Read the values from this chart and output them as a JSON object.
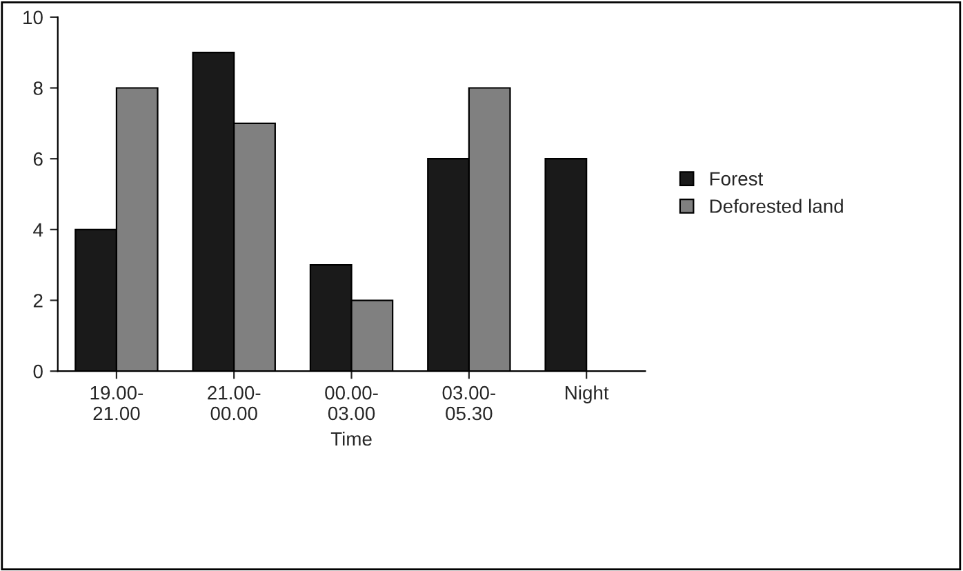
{
  "chart_data": {
    "type": "bar",
    "xlabel": "Time",
    "categories": [
      "19.00-21.00",
      "21.00-00.00",
      "00.00-03.00",
      "03.00-05.30",
      "Night"
    ],
    "series": [
      {
        "name": "Forest",
        "color": "#1a1a1a",
        "values": [
          4,
          9,
          3,
          6,
          6
        ]
      },
      {
        "name": "Deforested land",
        "color": "#808080",
        "values": [
          8,
          7,
          2,
          8,
          null
        ]
      }
    ],
    "ylim": [
      0,
      10
    ],
    "yticks": [
      0,
      2,
      4,
      6,
      8,
      10
    ],
    "grid": false,
    "legend": "right"
  }
}
